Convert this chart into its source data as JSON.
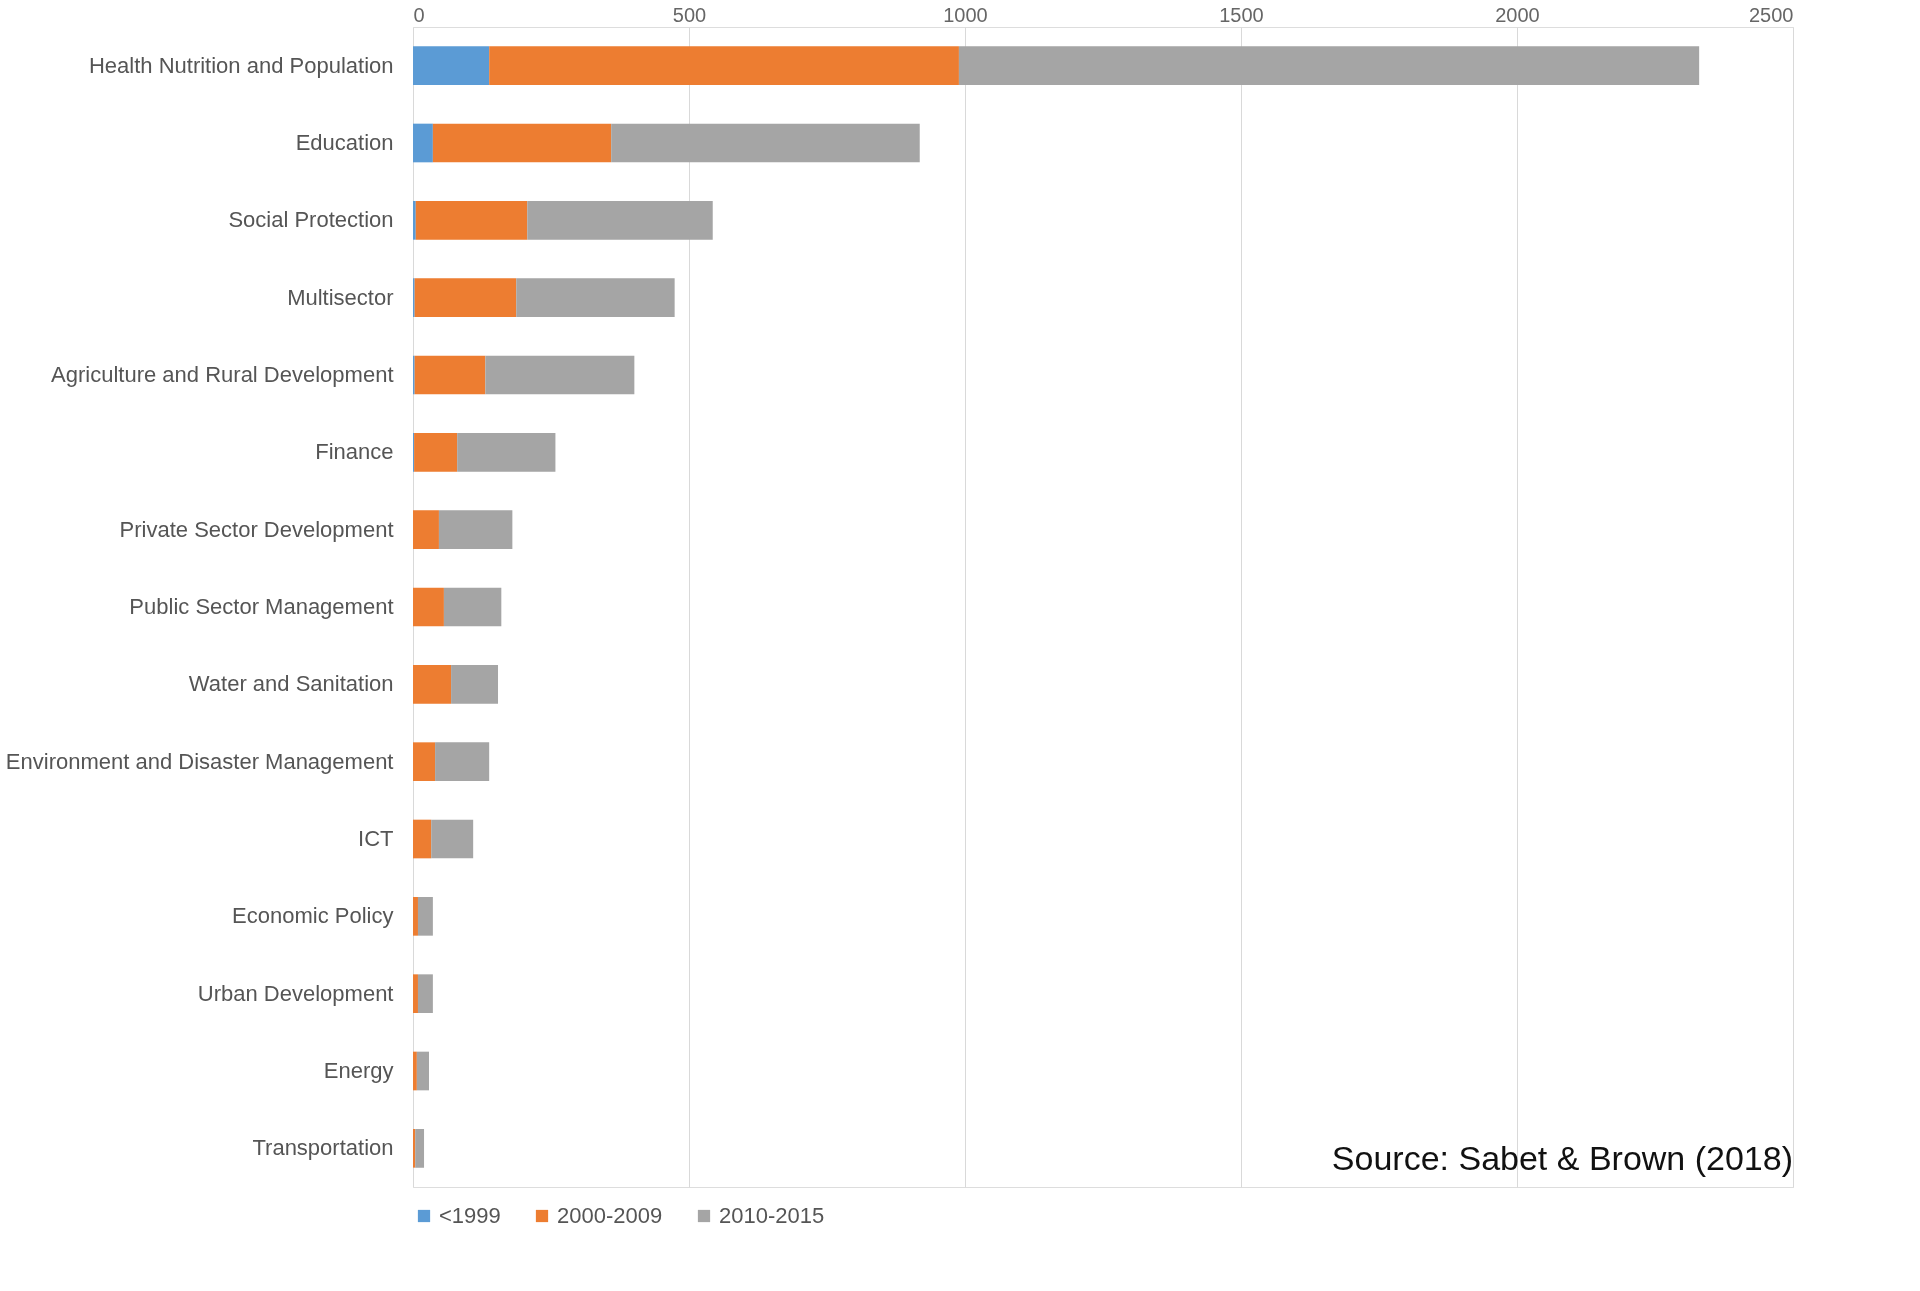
{
  "chart_data": {
    "type": "bar",
    "orientation": "horizontal",
    "stacked": true,
    "categories": [
      "Health Nutrition and Population",
      "Education",
      "Social Protection",
      "Multisector",
      "Agriculture and Rural Development",
      "Finance",
      "Private Sector Development",
      "Public Sector Management",
      "Water and Sanitation",
      "Environment and Disaster Management",
      "ICT",
      "Economic Policy",
      "Urban Development",
      "Energy",
      "Transportation"
    ],
    "series": [
      {
        "name": "<1999",
        "color": "#5b9bd5",
        "values": [
          138,
          36,
          5,
          3,
          3,
          2,
          0,
          0,
          0,
          0,
          0,
          0,
          0,
          0,
          0
        ]
      },
      {
        "name": "2000-2009",
        "color": "#ed7d31",
        "values": [
          851,
          323,
          202,
          184,
          128,
          78,
          47,
          56,
          69,
          40,
          33,
          9,
          9,
          7,
          4
        ]
      },
      {
        "name": "2010-2015",
        "color": "#a5a5a5",
        "values": [
          1341,
          559,
          336,
          287,
          270,
          178,
          133,
          104,
          85,
          98,
          76,
          27,
          27,
          22,
          16
        ]
      }
    ],
    "xlim": [
      0,
      2500
    ],
    "xticks": [
      0,
      500,
      1000,
      1500,
      2000,
      2500
    ],
    "grid": "x",
    "legend": "bottom",
    "annotations": [
      "Source:  Sabet & Brown (2018)"
    ]
  }
}
